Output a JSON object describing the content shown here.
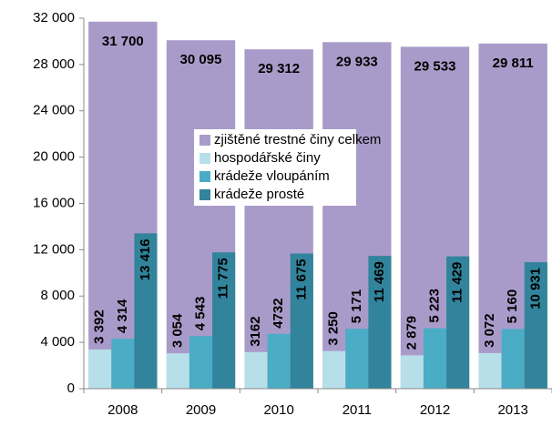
{
  "chart_data": {
    "type": "bar",
    "categories": [
      "2008",
      "2009",
      "2010",
      "2011",
      "2012",
      "2013"
    ],
    "series": [
      {
        "name": "zjištěné trestné činy celkem",
        "color": "#a99bc9",
        "values": [
          31700,
          30095,
          29312,
          29933,
          29533,
          29811
        ],
        "value_labels": [
          "31 700",
          "30 095",
          "29 312",
          "29 933",
          "29 533",
          "29 811"
        ]
      },
      {
        "name": "hospodářské činy",
        "color": "#b7dfe9",
        "values": [
          3392,
          3054,
          3162,
          3250,
          2879,
          3072
        ],
        "value_labels": [
          "3 392",
          "3 054",
          "3162",
          "3 250",
          "2 879",
          "3 072"
        ]
      },
      {
        "name": "krádeže vloupáním",
        "color": "#4bacc6",
        "values": [
          4314,
          4543,
          4732,
          5171,
          5223,
          5160
        ],
        "value_labels": [
          "4 314",
          "4 543",
          "4732",
          "5 171",
          "5 223",
          "5 160"
        ]
      },
      {
        "name": "krádeže prosté",
        "color": "#31849b",
        "values": [
          13416,
          11775,
          11675,
          11469,
          11429,
          10931
        ],
        "value_labels": [
          "13 416",
          "11 775",
          "11 675",
          "11 469",
          "11 429",
          "10 931"
        ]
      }
    ],
    "ylim": [
      0,
      32000
    ],
    "yticks": [
      0,
      {
        "value": 4000,
        "label": "4 000"
      },
      {
        "value": 8000,
        "label": "8 000"
      },
      {
        "value": 12000,
        "label": "12 000"
      },
      {
        "value": 16000,
        "label": "16 000"
      },
      {
        "value": 20000,
        "label": "20 000"
      },
      {
        "value": 24000,
        "label": "24 000"
      },
      {
        "value": 28000,
        "label": "28 000"
      },
      {
        "value": 32000,
        "label": "32 000"
      }
    ],
    "legend": "center"
  }
}
